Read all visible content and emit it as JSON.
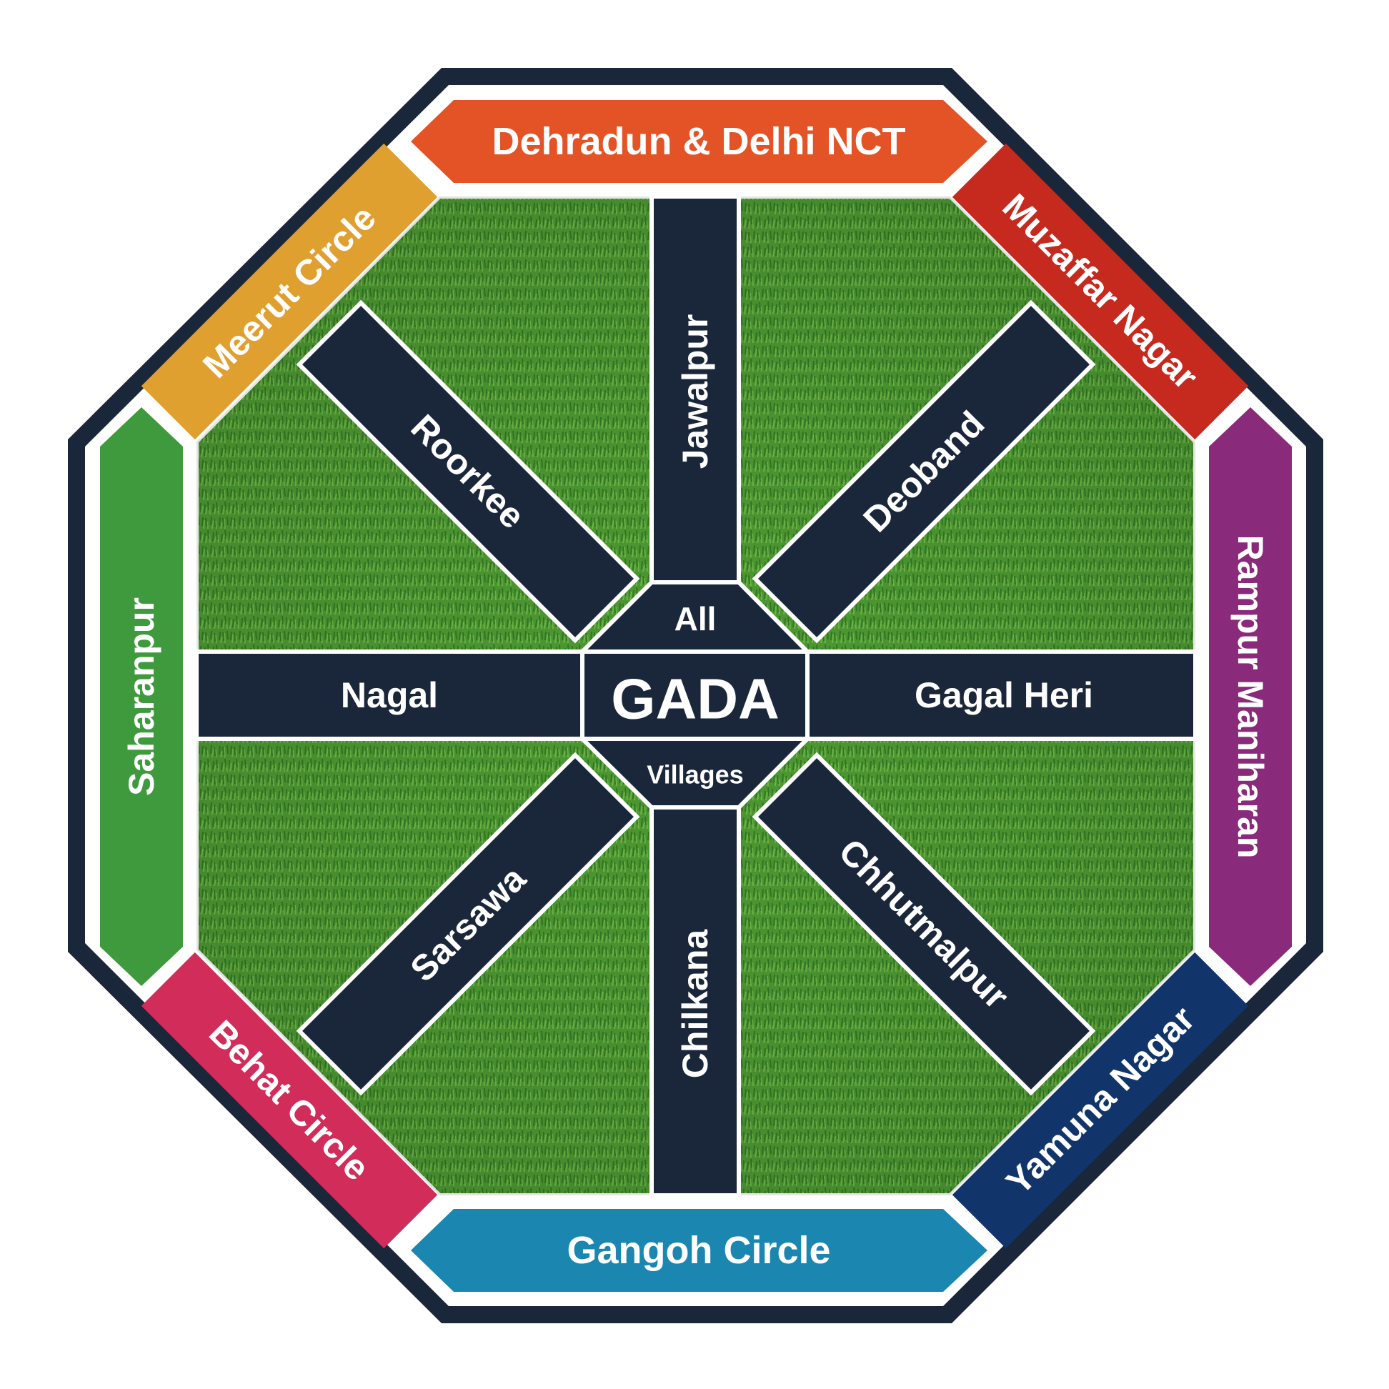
{
  "center": {
    "title": "GADA",
    "top_text": "All",
    "bottom_text": "Villages"
  },
  "spokes": {
    "jawalpur": "Jawalpur",
    "deoband": "Deoband",
    "gagal_heri": "Gagal Heri",
    "chhutmalpur": "Chhutmalpur",
    "chilkana": "Chilkana",
    "sarsawa": "Sarsawa",
    "nagal": "Nagal",
    "roorkee": "Roorkee"
  },
  "ring": {
    "top": "Dehradun & Delhi NCT",
    "top_right": "Muzaffar Nagar",
    "right": "Rampur Maniharan",
    "bottom_right": "Yamuna Nagar",
    "bottom": "Gangoh Circle",
    "bottom_left": "Behat Circle",
    "left": "Saharanpur",
    "top_left": "Meerut Circle"
  },
  "colors": {
    "navy": "#1a2639",
    "grass_light": "#5da63a",
    "grass_dark": "#2f7a24",
    "orange": "#e45326",
    "red": "#c62a1e",
    "purple": "#8a2a7a",
    "dark_blue": "#11356a",
    "teal": "#1b87b0",
    "pink": "#d22c5a",
    "green": "#3f9a3d",
    "mustard": "#e0a030"
  }
}
